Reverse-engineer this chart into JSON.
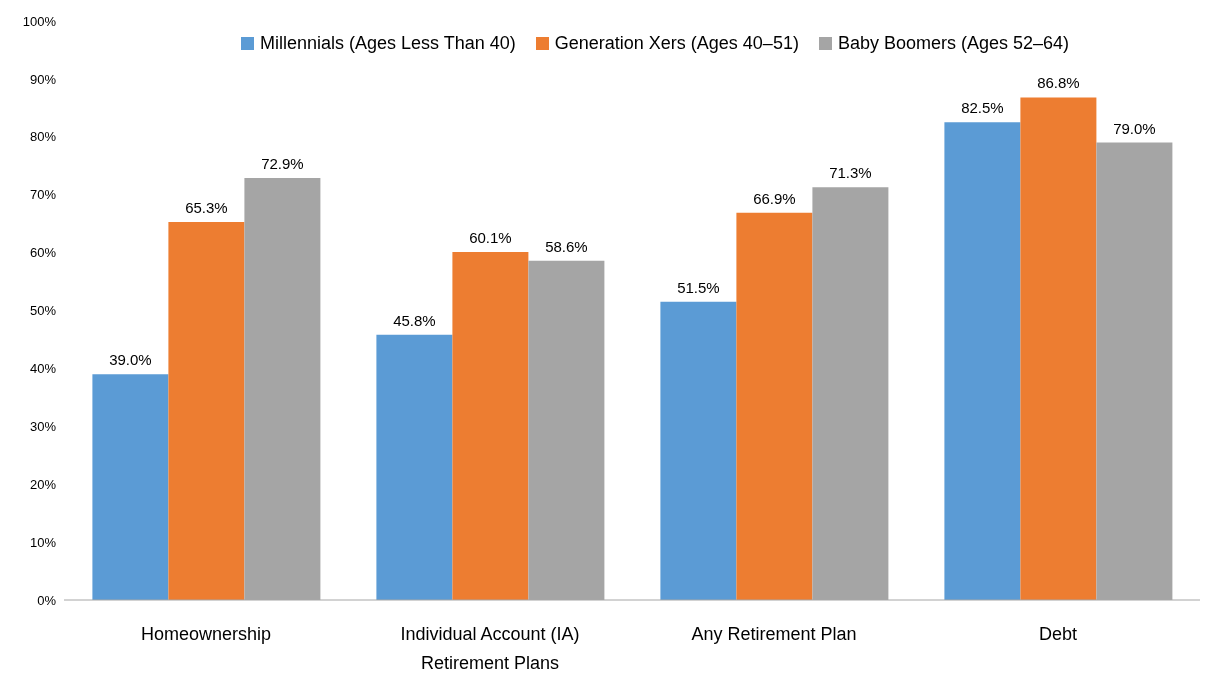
{
  "chart_data": {
    "type": "bar",
    "categories": [
      "Homeownership",
      "Individual Account (IA) Retirement Plans",
      "Any Retirement Plan",
      "Debt"
    ],
    "series": [
      {
        "name": "Millennials (Ages Less Than 40)",
        "color": "#5b9bd5",
        "values": [
          39.0,
          45.8,
          51.5,
          82.5
        ],
        "value_labels": [
          "39.0%",
          "45.8%",
          "51.5%",
          "82.5%"
        ]
      },
      {
        "name": "Generation Xers (Ages 40–51)",
        "color": "#ed7d31",
        "values": [
          65.3,
          60.1,
          66.9,
          86.8
        ],
        "value_labels": [
          "65.3%",
          "60.1%",
          "66.9%",
          "86.8%"
        ]
      },
      {
        "name": "Baby Boomers (Ages 52–64)",
        "color": "#a5a5a5",
        "values": [
          72.9,
          58.6,
          71.3,
          79.0
        ],
        "value_labels": [
          "72.9%",
          "58.6%",
          "71.3%",
          "79.0%"
        ]
      }
    ],
    "ylim": [
      0,
      100
    ],
    "yticks": [
      {
        "value": 0,
        "label": "0%"
      },
      {
        "value": 10,
        "label": "10%"
      },
      {
        "value": 20,
        "label": "20%"
      },
      {
        "value": 30,
        "label": "30%"
      },
      {
        "value": 40,
        "label": "40%"
      },
      {
        "value": 50,
        "label": "50%"
      },
      {
        "value": 60,
        "label": "60%"
      },
      {
        "value": 70,
        "label": "70%"
      },
      {
        "value": 80,
        "label": "80%"
      },
      {
        "value": 90,
        "label": "90%"
      },
      {
        "value": 100,
        "label": "100%"
      }
    ],
    "legend": "top"
  }
}
